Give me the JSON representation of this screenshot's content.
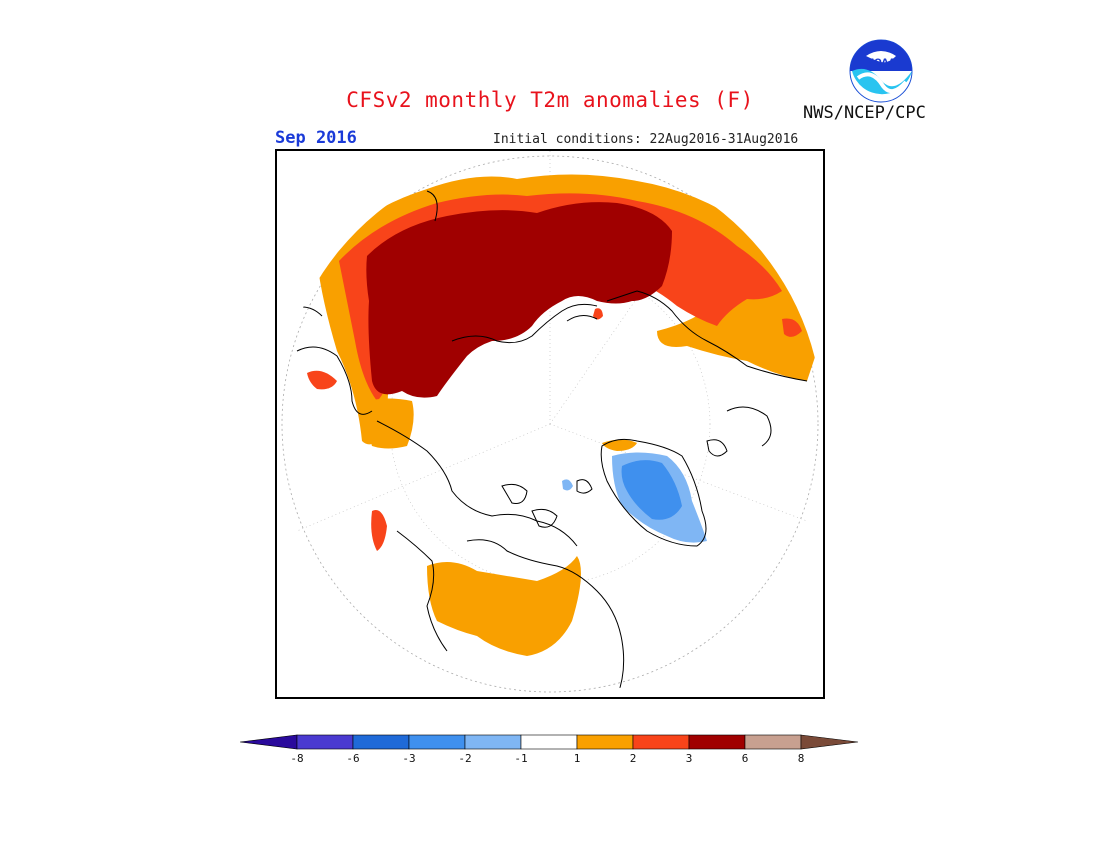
{
  "title": "CFSv2 monthly T2m anomalies (F)",
  "valid_month": "Sep 2016",
  "initial_conditions": "Initial conditions: 22Aug2016-31Aug2016",
  "agency": "NWS/NCEP/CPC",
  "logo_text": "NOAA",
  "colorbar": {
    "bins": [
      {
        "color": "#2a0a9c"
      },
      {
        "color": "#4a3ad0"
      },
      {
        "color": "#1f6ad8"
      },
      {
        "color": "#3f90ee"
      },
      {
        "color": "#7fb6f4"
      },
      {
        "color": "#ffffff"
      },
      {
        "color": "#f9a000"
      },
      {
        "color": "#f8441a"
      },
      {
        "color": "#a00000"
      },
      {
        "color": "#c8a090"
      },
      {
        "color": "#7a4a38"
      }
    ],
    "ticks": [
      "-8",
      "-6",
      "-3",
      "-2",
      "-1",
      "1",
      "2",
      "3",
      "6",
      "8"
    ]
  },
  "legend_colors": {
    "warm_1_2": "#f9a000",
    "warm_2_3": "#f8441a",
    "warm_3_6": "#a00000",
    "cool_1_2": "#7fb6f4",
    "cool_2_3": "#3f90ee",
    "cool_3_6": "#1f6ad8"
  }
}
